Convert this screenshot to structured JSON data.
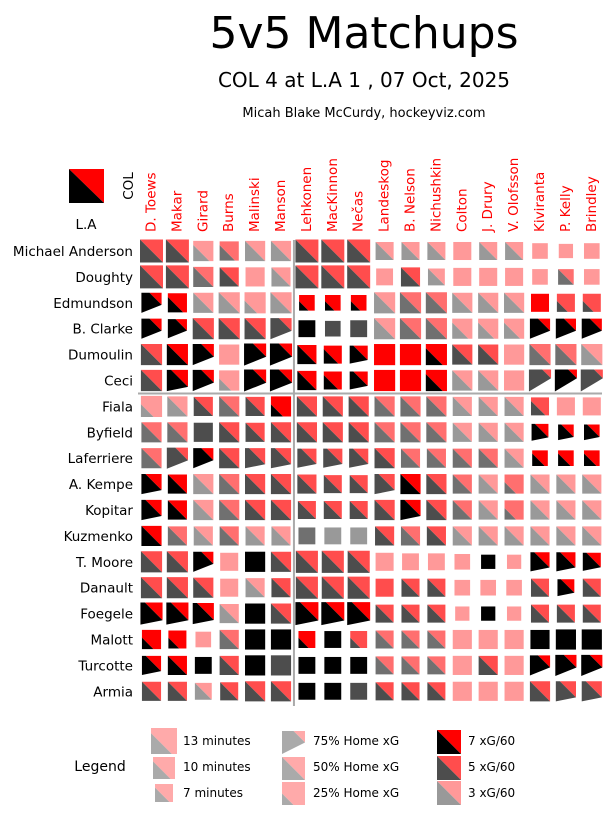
{
  "title": "5v5 Matchups",
  "subtitle": "COL 4 at L.A 1 , 07 Oct, 2025",
  "credit": "Micah Blake McCurdy, hockeyviz.com",
  "teams": {
    "home": "L.A",
    "away": "COL"
  },
  "colors": {
    "away_accent": "#ff0000",
    "home_accent": "#000000",
    "divider": "#aaaaaa"
  },
  "legend": {
    "title": "Legend",
    "time": [
      "13 minutes",
      "10 minutes",
      "7 minutes"
    ],
    "share": [
      "75% Home xG",
      "50% Home xG",
      "25% Home xG"
    ],
    "rate": [
      "7 xG/60",
      "5 xG/60",
      "3 xG/60"
    ]
  },
  "chart_data": {
    "type": "heatmap",
    "title": "5v5 Matchups",
    "subtitle": "COL 4 at L.A 1 , 07 Oct, 2025",
    "columns": [
      "D. Toews",
      "Makar",
      "Girard",
      "Burns",
      "Malinski",
      "Manson",
      "Lehkonen",
      "MacKinnon",
      "Nečas",
      "Landeskog",
      "B. Nelson",
      "Nichushkin",
      "Colton",
      "J. Drury",
      "V. Olofsson",
      "Kiviranta",
      "P. Kelly",
      "Brindley"
    ],
    "rows": [
      "Michael Anderson",
      "Doughty",
      "Edmundson",
      "B. Clarke",
      "Dumoulin",
      "Ceci",
      "Fiala",
      "Byfield",
      "Laferriere",
      "A. Kempe",
      "Kopitar",
      "Kuzmenko",
      "T. Moore",
      "Danault",
      "Foegele",
      "Malott",
      "Turcotte",
      "Armia"
    ],
    "column_groups": [
      6,
      12
    ],
    "row_groups": [
      6
    ],
    "cell_encoding": "size = 5v5 time on ice together (minutes); split triangle = home (L.A) share of xG, black lower-left = home, red upper-right = away; darkness = combined xG/60",
    "minutes": [
      [
        13,
        13,
        10,
        9,
        10,
        10,
        13,
        13,
        13,
        8,
        8,
        8,
        8,
        8,
        8,
        6,
        5,
        6
      ],
      [
        13,
        13,
        10,
        9,
        9,
        9,
        13,
        13,
        13,
        7,
        9,
        7,
        8,
        8,
        8,
        6,
        6,
        6
      ],
      [
        10,
        9,
        10,
        11,
        11,
        11,
        6,
        6,
        6,
        11,
        11,
        11,
        10,
        10,
        10,
        8,
        8,
        8
      ],
      [
        10,
        9,
        11,
        11,
        11,
        11,
        7,
        6,
        7,
        11,
        11,
        11,
        10,
        10,
        10,
        10,
        10,
        10
      ],
      [
        11,
        11,
        11,
        10,
        12,
        12,
        9,
        8,
        8,
        11,
        11,
        11,
        10,
        10,
        10,
        11,
        11,
        11
      ],
      [
        11,
        11,
        11,
        10,
        12,
        12,
        9,
        8,
        8,
        11,
        11,
        11,
        10,
        10,
        10,
        12,
        12,
        12
      ],
      [
        11,
        10,
        9,
        10,
        9,
        10,
        10,
        10,
        10,
        10,
        10,
        10,
        9,
        9,
        9,
        8,
        8,
        8
      ],
      [
        10,
        10,
        9,
        10,
        9,
        10,
        10,
        10,
        10,
        10,
        10,
        10,
        9,
        9,
        9,
        7,
        6,
        6
      ],
      [
        10,
        11,
        10,
        10,
        10,
        10,
        9,
        9,
        9,
        10,
        9,
        9,
        9,
        9,
        9,
        6,
        6,
        6
      ],
      [
        10,
        9,
        10,
        10,
        10,
        10,
        9,
        8,
        8,
        10,
        10,
        10,
        9,
        9,
        9,
        9,
        9,
        9
      ],
      [
        10,
        9,
        10,
        10,
        10,
        10,
        8,
        8,
        8,
        10,
        10,
        10,
        9,
        9,
        9,
        9,
        9,
        9
      ],
      [
        10,
        9,
        9,
        9,
        9,
        9,
        7,
        7,
        7,
        9,
        9,
        9,
        9,
        9,
        9,
        9,
        9,
        9
      ],
      [
        11,
        11,
        10,
        8,
        10,
        10,
        12,
        12,
        12,
        8,
        7,
        7,
        6,
        5,
        5,
        9,
        9,
        8
      ],
      [
        11,
        11,
        10,
        8,
        9,
        9,
        12,
        12,
        12,
        8,
        8,
        8,
        6,
        6,
        6,
        8,
        7,
        8
      ],
      [
        12,
        12,
        11,
        9,
        10,
        10,
        13,
        13,
        13,
        8,
        8,
        8,
        5,
        5,
        5,
        8,
        8,
        8
      ],
      [
        9,
        8,
        6,
        9,
        10,
        10,
        7,
        7,
        7,
        8,
        8,
        8,
        9,
        9,
        9,
        9,
        10,
        10
      ],
      [
        9,
        9,
        7,
        9,
        10,
        10,
        7,
        7,
        7,
        8,
        8,
        8,
        9,
        9,
        9,
        10,
        11,
        11
      ],
      [
        9,
        9,
        7,
        8,
        10,
        10,
        7,
        7,
        7,
        8,
        8,
        8,
        9,
        9,
        9,
        10,
        10,
        10
      ]
    ],
    "home_xg_share": [
      [
        0.5,
        0.5,
        0.4,
        0.4,
        0.5,
        0.5,
        0.5,
        0.5,
        0.5,
        0.5,
        0.5,
        0.5,
        0.1,
        0.5,
        0.5,
        0.1,
        0.1,
        0.1
      ],
      [
        0.5,
        0.5,
        0.5,
        0.5,
        0.1,
        0.5,
        0.5,
        0.5,
        0.5,
        0.1,
        0.5,
        0.5,
        0.1,
        0.1,
        0.1,
        0.1,
        0.5,
        0.1
      ],
      [
        0.7,
        0.4,
        0.5,
        0.5,
        0.3,
        0.5,
        0.3,
        0.3,
        0.3,
        0.5,
        0.5,
        0.5,
        0.5,
        0.5,
        0.5,
        0.1,
        0.3,
        0.3
      ],
      [
        0.7,
        0.7,
        0.5,
        0.5,
        0.5,
        0.7,
        1,
        1,
        1,
        0.5,
        0.5,
        0.5,
        0.4,
        0.4,
        0.4,
        0.7,
        0.7,
        0.7
      ],
      [
        0.5,
        0.5,
        0.7,
        0.1,
        0.7,
        0.7,
        0.5,
        0.4,
        0.6,
        0.1,
        0.1,
        0.4,
        0.5,
        0.5,
        0.1,
        0.5,
        0.5,
        0.5
      ],
      [
        0.5,
        0.6,
        0.7,
        0.3,
        0.7,
        0.7,
        0.5,
        0.4,
        0.6,
        0.1,
        0.1,
        0.4,
        0.5,
        0.5,
        0.1,
        0.8,
        0.8,
        0.8
      ],
      [
        0.3,
        0.5,
        0.5,
        0.5,
        0.5,
        0.3,
        0.5,
        0.5,
        0.5,
        0.5,
        0.5,
        0.5,
        0.5,
        0.5,
        0.5,
        0.4,
        0.1,
        0.1
      ],
      [
        0.5,
        0.5,
        1,
        0.5,
        0.5,
        0.5,
        0.5,
        0.5,
        0.5,
        0.5,
        0.5,
        0.5,
        0.5,
        0.5,
        0.5,
        0.6,
        0.6,
        0.6
      ],
      [
        0.5,
        0.7,
        0.7,
        0.5,
        0.6,
        0.6,
        0.6,
        0.6,
        0.6,
        0.5,
        0.5,
        0.5,
        0.5,
        0.5,
        0.5,
        0.4,
        0.4,
        0.4
      ],
      [
        0.6,
        0.5,
        0.5,
        0.5,
        0.5,
        0.5,
        0.5,
        0.5,
        0.5,
        0.6,
        0.5,
        0.5,
        0.5,
        0.5,
        0.3,
        0.5,
        0.5,
        0.5
      ],
      [
        0.6,
        0.5,
        0.5,
        0.5,
        0.5,
        0.5,
        0.5,
        0.5,
        0.5,
        0.5,
        0.6,
        0.5,
        0.5,
        0.5,
        0.3,
        0.5,
        0.5,
        0.5
      ],
      [
        0.5,
        0.5,
        0.5,
        0.5,
        0.5,
        0.5,
        1,
        1,
        1,
        0.5,
        0.5,
        0.5,
        0.5,
        0.5,
        0.5,
        0.5,
        0.5,
        0.5
      ],
      [
        0.5,
        0.5,
        0.7,
        0.1,
        1,
        0.5,
        0.5,
        0.5,
        0.5,
        0.1,
        0.1,
        0.1,
        0.1,
        1,
        0.1,
        0.6,
        0.6,
        0.6
      ],
      [
        0.5,
        0.5,
        0.5,
        0.1,
        0.5,
        0.5,
        0.5,
        0.5,
        0.5,
        0.1,
        0.5,
        0.5,
        0.1,
        0.1,
        0.1,
        0.5,
        0.6,
        0.5
      ],
      [
        0.6,
        0.6,
        0.6,
        0.5,
        1,
        0.5,
        0.6,
        0.6,
        0.6,
        0.5,
        0.5,
        0.5,
        0.1,
        1,
        0.1,
        0.5,
        0.5,
        0.5
      ],
      [
        0.3,
        0.3,
        0.1,
        0.5,
        1,
        1,
        0.3,
        1,
        0.3,
        0.5,
        0.5,
        0.5,
        0.1,
        0.1,
        0.1,
        1,
        1,
        1
      ],
      [
        0.6,
        0.5,
        1,
        0.5,
        1,
        1,
        1,
        1,
        1,
        0.5,
        0.5,
        0.5,
        0.1,
        0.5,
        0.1,
        0.7,
        0.7,
        0.7
      ],
      [
        0.5,
        0.5,
        0.5,
        0.5,
        0.5,
        0.5,
        1,
        1,
        1,
        0.5,
        0.5,
        0.5,
        0.1,
        0.1,
        0.1,
        0.5,
        0.6,
        0.6
      ]
    ],
    "xg_per_60": [
      [
        5,
        5,
        3,
        4,
        3,
        3,
        5,
        5,
        5,
        3,
        3,
        3,
        3,
        3,
        3,
        3,
        3,
        3
      ],
      [
        5,
        5,
        4,
        5,
        3,
        3,
        5,
        5,
        5,
        3,
        5,
        3,
        3,
        3,
        3,
        3,
        4,
        3
      ],
      [
        7,
        7,
        3,
        3,
        3,
        3,
        7,
        7,
        7,
        3,
        4,
        4,
        3,
        3,
        3,
        7,
        5,
        5
      ],
      [
        7,
        7,
        5,
        5,
        5,
        5,
        7,
        5,
        5,
        3,
        4,
        4,
        3,
        3,
        3,
        7,
        7,
        7
      ],
      [
        5,
        7,
        7,
        3,
        7,
        7,
        7,
        7,
        7,
        7,
        7,
        7,
        5,
        5,
        3,
        4,
        4,
        3
      ],
      [
        5,
        7,
        7,
        3,
        7,
        7,
        7,
        7,
        7,
        7,
        7,
        7,
        3,
        3,
        3,
        6,
        7,
        6
      ],
      [
        3,
        3,
        5,
        4,
        5,
        7,
        5,
        5,
        5,
        4,
        4,
        4,
        3,
        3,
        3,
        5,
        3,
        3
      ],
      [
        4,
        4,
        5,
        5,
        5,
        5,
        5,
        5,
        5,
        4,
        4,
        4,
        3,
        3,
        3,
        7,
        7,
        7
      ],
      [
        4,
        6,
        7,
        5,
        5,
        5,
        5,
        5,
        5,
        5,
        4,
        4,
        4,
        4,
        3,
        7,
        7,
        7
      ],
      [
        7,
        7,
        3,
        4,
        5,
        5,
        5,
        5,
        5,
        5,
        7,
        5,
        4,
        3,
        4,
        3,
        3,
        3
      ],
      [
        7,
        7,
        3,
        4,
        5,
        5,
        5,
        5,
        5,
        5,
        7,
        5,
        4,
        3,
        4,
        3,
        3,
        3
      ],
      [
        7,
        4,
        3,
        4,
        3,
        3,
        4,
        3,
        3,
        5,
        4,
        5,
        3,
        3,
        3,
        3,
        3,
        3
      ],
      [
        5,
        5,
        7,
        3,
        7,
        5,
        5,
        5,
        5,
        3,
        3,
        3,
        3,
        7,
        3,
        7,
        7,
        7
      ],
      [
        5,
        5,
        5,
        3,
        3,
        5,
        5,
        5,
        5,
        5,
        5,
        5,
        3,
        3,
        3,
        5,
        7,
        5
      ],
      [
        7,
        7,
        7,
        3,
        7,
        5,
        7,
        7,
        7,
        5,
        5,
        5,
        3,
        7,
        3,
        5,
        5,
        5
      ],
      [
        7,
        7,
        3,
        4,
        7,
        7,
        7,
        7,
        5,
        4,
        4,
        4,
        3,
        3,
        3,
        7,
        7,
        7
      ],
      [
        7,
        7,
        7,
        5,
        7,
        5,
        7,
        7,
        7,
        4,
        4,
        4,
        3,
        5,
        3,
        7,
        7,
        7
      ],
      [
        5,
        5,
        3,
        5,
        5,
        5,
        7,
        7,
        5,
        5,
        5,
        5,
        3,
        3,
        3,
        5,
        5,
        5
      ]
    ]
  }
}
